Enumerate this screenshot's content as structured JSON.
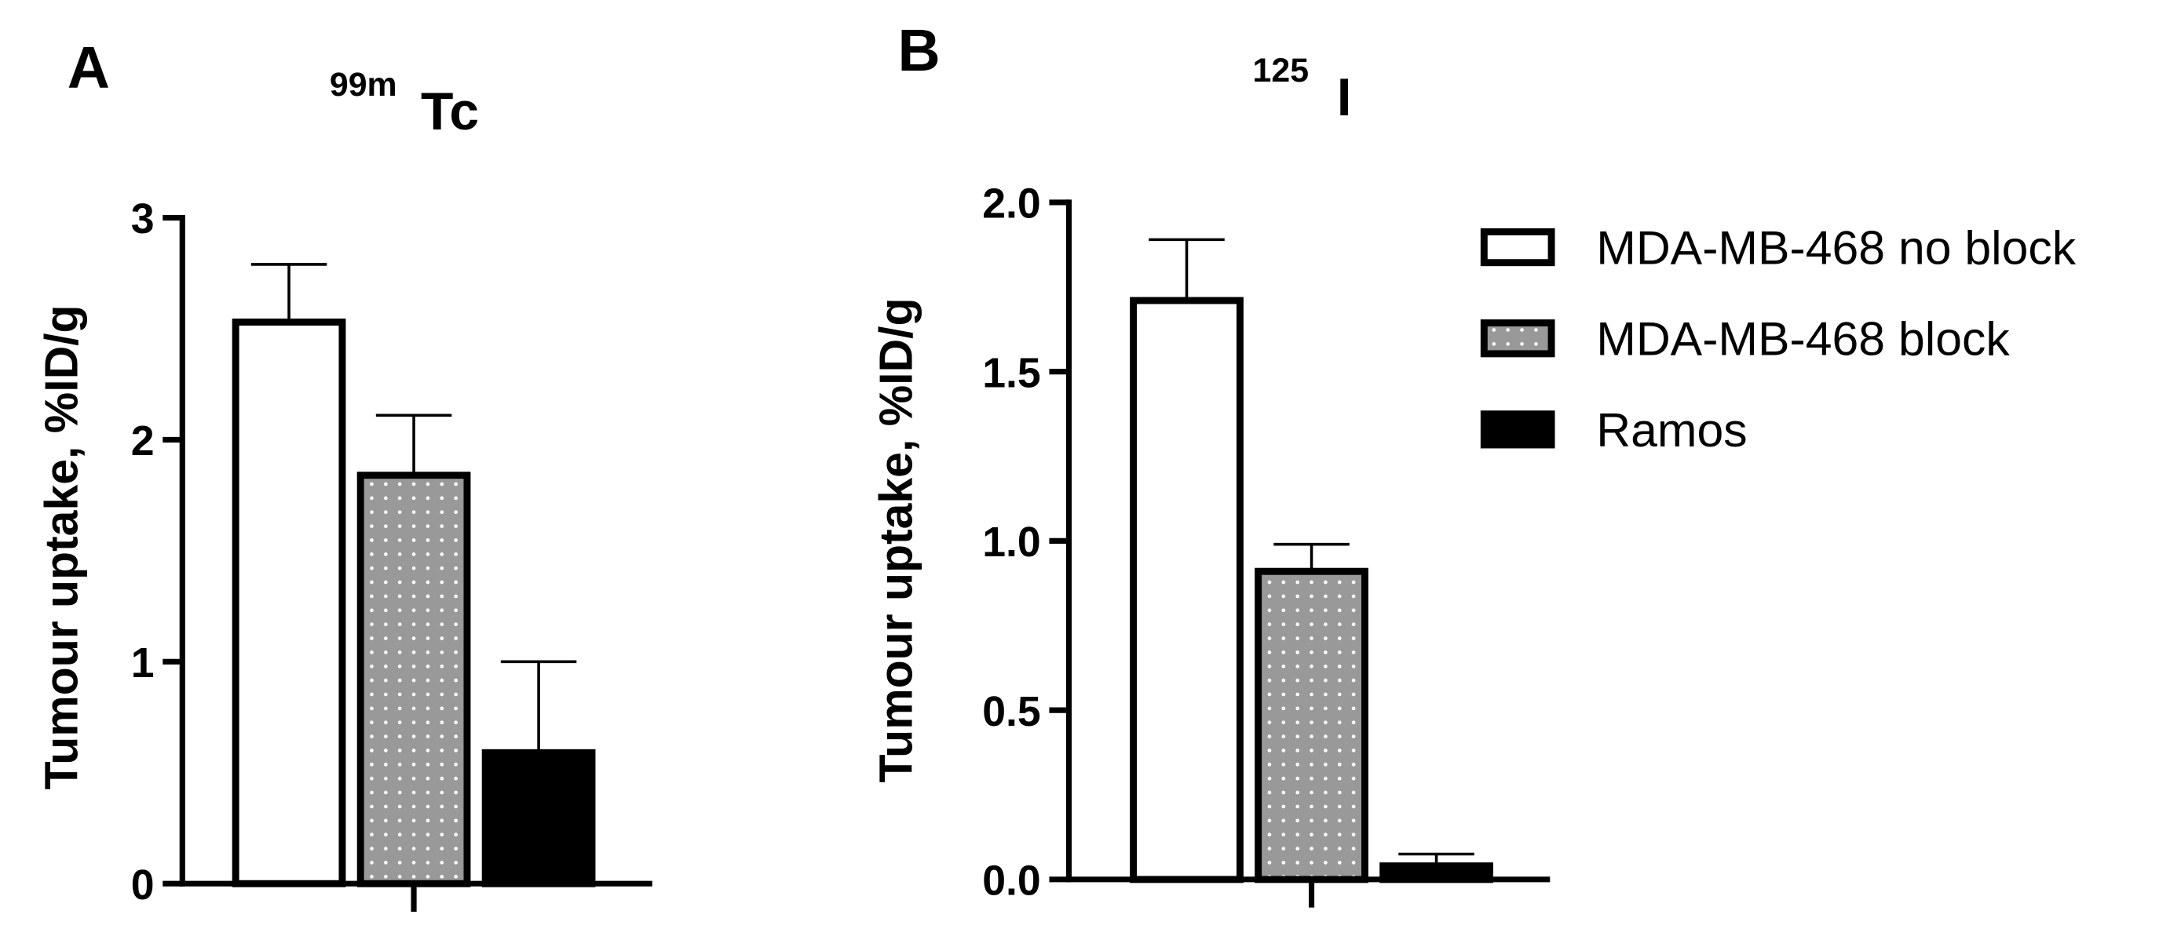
{
  "chart_data": [
    {
      "type": "bar",
      "panel_label": "A",
      "title_superscript": "99m",
      "title": "Tc",
      "y_label": "Tumour uptake, %ID/g",
      "categories": [
        null
      ],
      "ylim": [
        0,
        3
      ],
      "yticks": [
        0,
        1,
        2,
        3
      ],
      "series": [
        {
          "color": "#ffffff",
          "values": [
            2.53
          ],
          "errors": [
            0.26
          ]
        },
        {
          "color": "#999999",
          "hatch": "dots",
          "values": [
            1.84
          ],
          "errors": [
            0.27
          ]
        },
        {
          "color": "#000000",
          "values": [
            0.59
          ],
          "errors": [
            0.41
          ]
        }
      ]
    },
    {
      "type": "bar",
      "panel_label": "B",
      "title_superscript": "125",
      "title": "I",
      "y_label": "Tumour uptake, %ID/g",
      "categories": [
        null
      ],
      "ylim": [
        0,
        2
      ],
      "yticks": [
        {
          "value": 0,
          "label": "0.0"
        },
        0.5,
        {
          "value": 1,
          "label": "1.0"
        },
        1.5,
        {
          "value": 2,
          "label": "2.0"
        }
      ],
      "legend": "right",
      "series": [
        {
          "name": "MDA-MB-468 no block",
          "color": "#ffffff",
          "values": [
            1.71
          ],
          "errors": [
            0.18
          ]
        },
        {
          "name": "MDA-MB-468 block",
          "color": "#999999",
          "hatch": "dots",
          "values": [
            0.91
          ],
          "errors": [
            0.08
          ]
        },
        {
          "name": "Ramos",
          "color": "#000000",
          "values": [
            0.04
          ],
          "errors": [
            0.035
          ]
        }
      ]
    }
  ]
}
